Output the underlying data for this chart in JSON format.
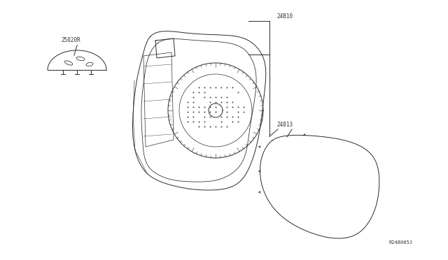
{
  "bg_color": "#ffffff",
  "line_color": "#2a2a2a",
  "label_color": "#333333",
  "labels": {
    "part1": "25020R",
    "part2": "24B10",
    "part3": "24813",
    "ref": "R248005J"
  },
  "figsize": [
    6.4,
    3.72
  ],
  "dpi": 100
}
